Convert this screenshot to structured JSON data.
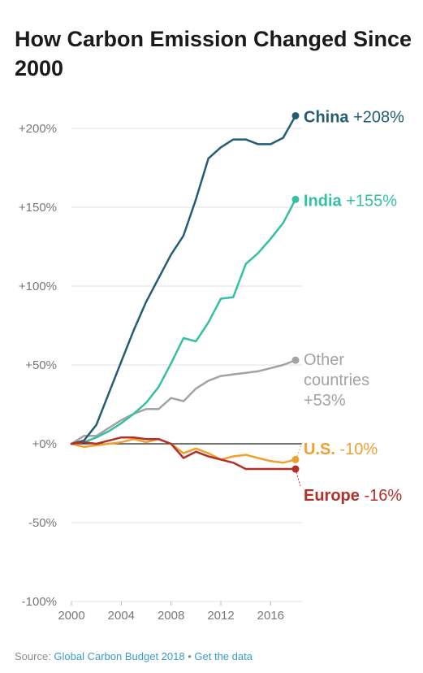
{
  "title": "How Carbon Emission Changed Since 2000",
  "source": {
    "prefix": "Source: ",
    "link_text": "Global Carbon Budget 2018",
    "separator": " • ",
    "data_link": "Get the data"
  },
  "chart_data": {
    "type": "line",
    "ylim": [
      -100,
      200
    ],
    "xlim": [
      2000,
      2018
    ],
    "x_ticks": [
      2000,
      2004,
      2008,
      2012,
      2016
    ],
    "x_tick_labels": [
      "2000",
      "2004",
      "2008",
      "2012",
      "2016"
    ],
    "y_ticks": [
      200,
      150,
      100,
      50,
      0,
      -50,
      -100
    ],
    "y_tick_labels": [
      "+200%",
      "+150%",
      "+100%",
      "+50%",
      "+0%",
      "-50%",
      "-100%"
    ],
    "grid": "horizontal",
    "x": [
      2000,
      2001,
      2002,
      2003,
      2004,
      2005,
      2006,
      2007,
      2008,
      2009,
      2010,
      2011,
      2012,
      2013,
      2014,
      2015,
      2016,
      2017,
      2018
    ],
    "series": [
      {
        "id": "china",
        "name": "China",
        "value_label": "+208%",
        "color": "#245d73",
        "values": [
          0,
          2,
          12,
          32,
          52,
          72,
          90,
          105,
          120,
          132,
          155,
          181,
          188,
          193,
          193,
          190,
          190,
          194,
          208
        ]
      },
      {
        "id": "india",
        "name": "India",
        "value_label": "+155%",
        "color": "#35bfa4",
        "values": [
          0,
          1,
          4,
          8,
          13,
          19,
          26,
          36,
          51,
          67,
          65,
          77,
          92,
          93,
          114,
          121,
          130,
          140,
          155
        ]
      },
      {
        "id": "other",
        "name": "Other countries",
        "value_label": "+53%",
        "color": "#a3a3a3",
        "values": [
          0,
          5,
          5,
          10,
          15,
          19,
          22,
          22,
          29,
          27,
          35,
          40,
          43,
          44,
          45,
          46,
          48,
          50,
          53
        ]
      },
      {
        "id": "us",
        "name": "U.S.",
        "value_label": "-10%",
        "color": "#f0a030",
        "values": [
          0,
          -2,
          -1,
          0,
          1,
          3,
          1,
          3,
          0,
          -6,
          -3,
          -6,
          -10,
          -8,
          -7,
          -9,
          -11,
          -12,
          -10
        ]
      },
      {
        "id": "europe",
        "name": "Europe",
        "value_label": "-16%",
        "color": "#b2302a",
        "values": [
          0,
          1,
          0,
          2,
          4,
          4,
          3,
          3,
          0,
          -9,
          -5,
          -8,
          -10,
          -12,
          -16,
          -16,
          -16,
          -16,
          -16
        ]
      }
    ]
  }
}
